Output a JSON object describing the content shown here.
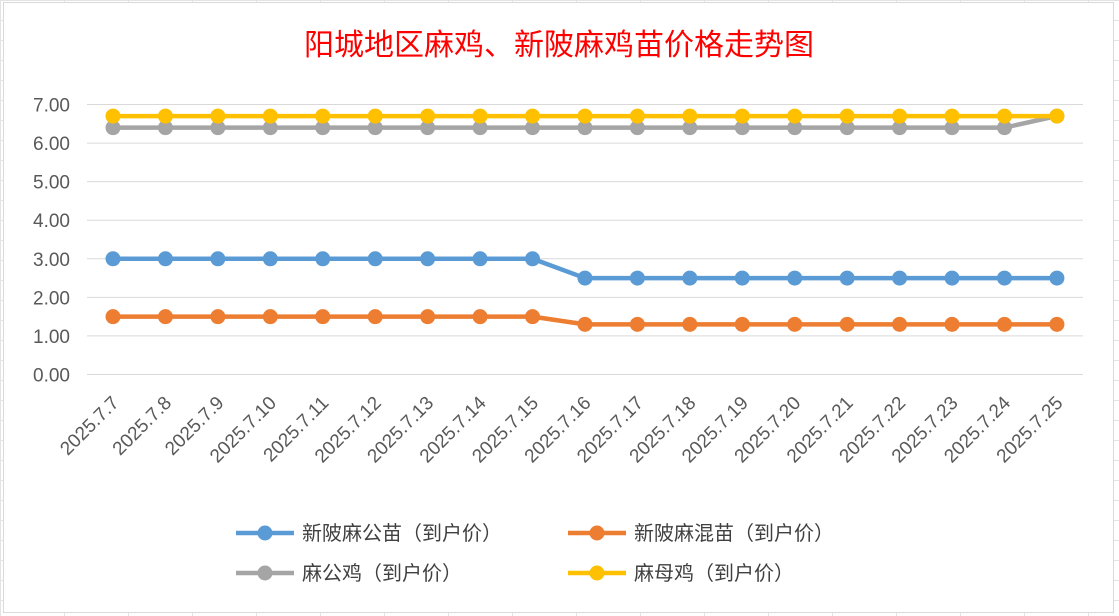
{
  "chart_data": {
    "type": "line",
    "title": "阳城地区麻鸡、新陂麻鸡苗价格走势图",
    "xlabel": "",
    "ylabel": "",
    "ylim": [
      0,
      7
    ],
    "y_ticks": [
      "0.00",
      "1.00",
      "2.00",
      "3.00",
      "4.00",
      "5.00",
      "6.00",
      "7.00"
    ],
    "grid": true,
    "legend_position": "bottom",
    "categories": [
      "2025.7.7",
      "2025.7.8",
      "2025.7.9",
      "2025.7.10",
      "2025.7.11",
      "2025.7.12",
      "2025.7.13",
      "2025.7.14",
      "2025.7.15",
      "2025.7.16",
      "2025.7.17",
      "2025.7.18",
      "2025.7.19",
      "2025.7.20",
      "2025.7.21",
      "2025.7.22",
      "2025.7.23",
      "2025.7.24",
      "2025.7.25"
    ],
    "series": [
      {
        "name": "新陂麻公苗（到户价）",
        "color": "#5b9bd5",
        "values": [
          3.0,
          3.0,
          3.0,
          3.0,
          3.0,
          3.0,
          3.0,
          3.0,
          3.0,
          2.5,
          2.5,
          2.5,
          2.5,
          2.5,
          2.5,
          2.5,
          2.5,
          2.5,
          2.5
        ]
      },
      {
        "name": "新陂麻混苗（到户价）",
        "color": "#ed7d31",
        "values": [
          1.5,
          1.5,
          1.5,
          1.5,
          1.5,
          1.5,
          1.5,
          1.5,
          1.5,
          1.3,
          1.3,
          1.3,
          1.3,
          1.3,
          1.3,
          1.3,
          1.3,
          1.3,
          1.3
        ]
      },
      {
        "name": "麻公鸡（到户价）",
        "color": "#a5a5a5",
        "values": [
          6.4,
          6.4,
          6.4,
          6.4,
          6.4,
          6.4,
          6.4,
          6.4,
          6.4,
          6.4,
          6.4,
          6.4,
          6.4,
          6.4,
          6.4,
          6.4,
          6.4,
          6.4,
          6.7
        ]
      },
      {
        "name": "麻母鸡（到户价）",
        "color": "#ffc000",
        "values": [
          6.7,
          6.7,
          6.7,
          6.7,
          6.7,
          6.7,
          6.7,
          6.7,
          6.7,
          6.7,
          6.7,
          6.7,
          6.7,
          6.7,
          6.7,
          6.7,
          6.7,
          6.7,
          6.7
        ]
      }
    ]
  }
}
